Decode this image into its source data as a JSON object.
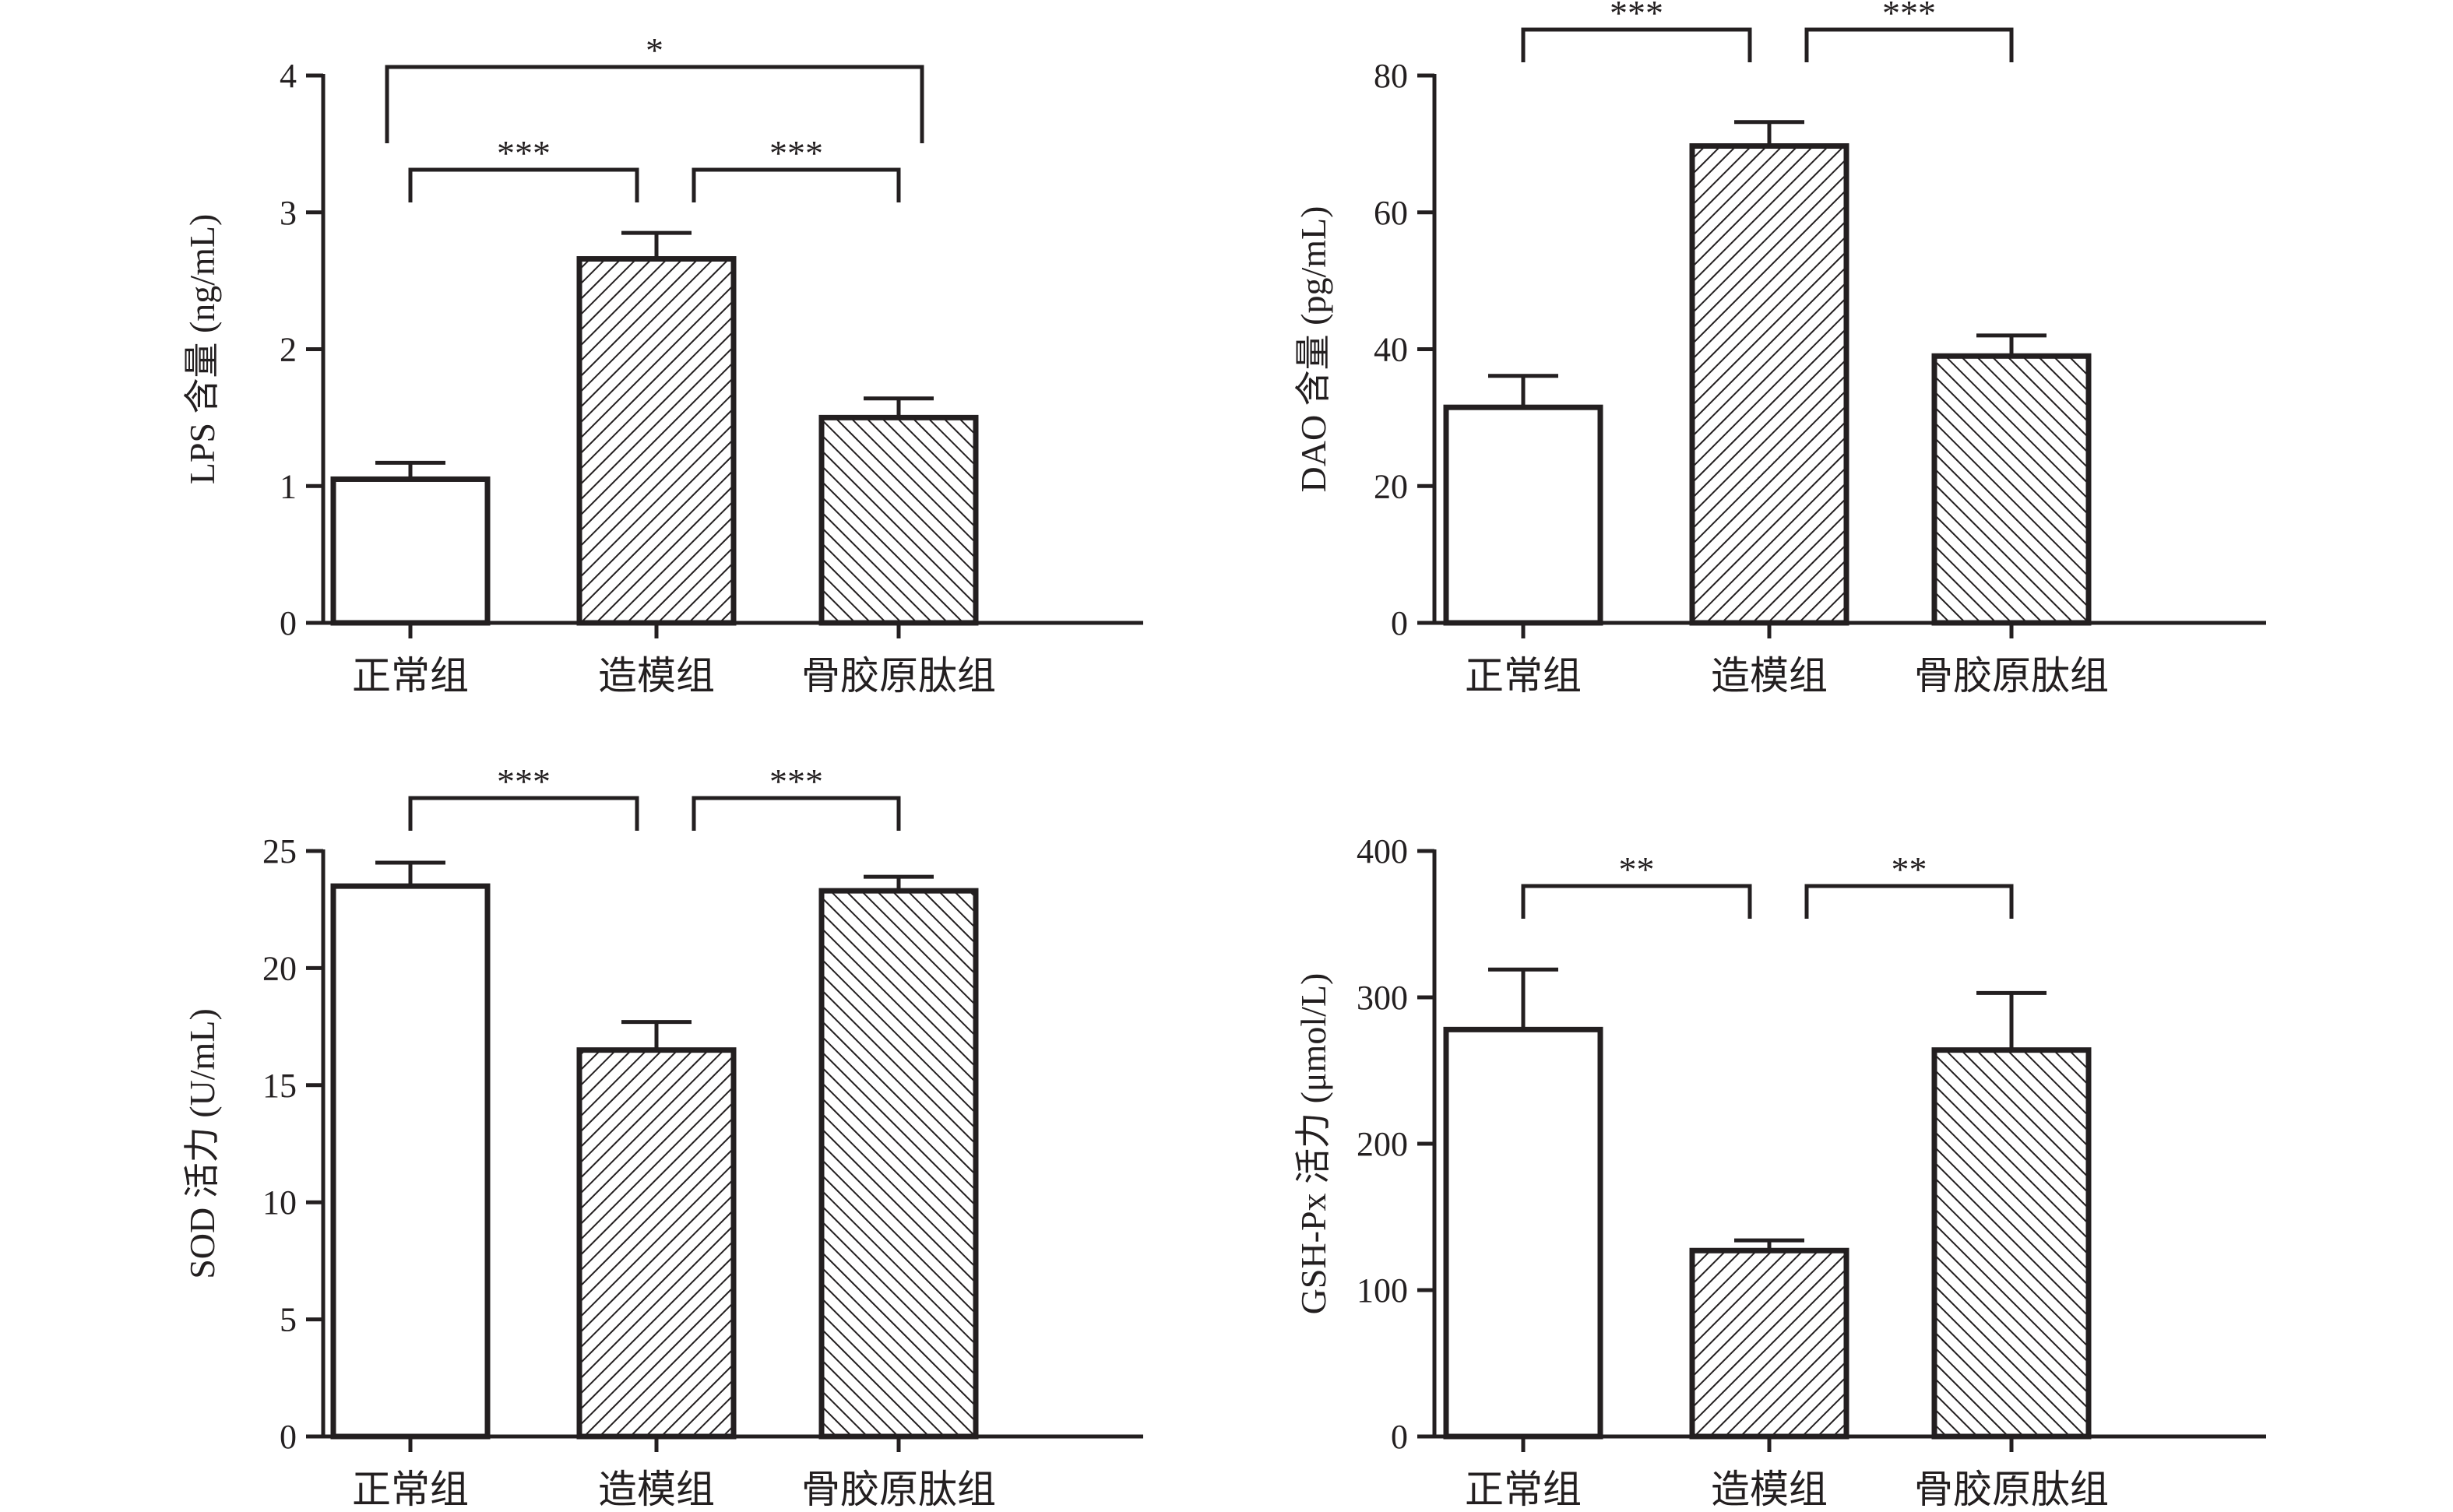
{
  "chart_data": [
    {
      "type": "bar",
      "categories": [
        "正常组",
        "造模组",
        "骨胶原肽组"
      ],
      "values": [
        1.05,
        2.66,
        1.5
      ],
      "errors": [
        0.12,
        0.19,
        0.14
      ],
      "ylabel": "LPS 含量 (ng/mL)",
      "ylim": [
        0,
        4
      ],
      "yticks": [
        "0",
        "1",
        "2",
        "3",
        "4"
      ],
      "bar_fills": [
        "open",
        "diagonal-hatch",
        "diagonal-hatch-reverse"
      ],
      "significance": [
        {
          "from": 0,
          "to": 1,
          "label": "***"
        },
        {
          "from": 1,
          "to": 2,
          "label": "***"
        },
        {
          "from": 0,
          "to": 2,
          "label": "*"
        }
      ]
    },
    {
      "type": "bar",
      "categories": [
        "正常组",
        "造模组",
        "骨胶原肽组"
      ],
      "values": [
        31.5,
        69.7,
        39.0
      ],
      "errors": [
        4.6,
        3.5,
        3.0
      ],
      "ylabel": "DAO 含量 (pg/mL)",
      "ylim": [
        0,
        80
      ],
      "yticks": [
        "0",
        "20",
        "40",
        "60",
        "80"
      ],
      "bar_fills": [
        "open",
        "diagonal-hatch",
        "diagonal-hatch-reverse"
      ],
      "significance": [
        {
          "from": 0,
          "to": 1,
          "label": "***"
        },
        {
          "from": 1,
          "to": 2,
          "label": "***"
        }
      ]
    },
    {
      "type": "bar",
      "categories": [
        "正常组",
        "造模组",
        "骨胶原肽组"
      ],
      "values": [
        23.5,
        16.5,
        23.3
      ],
      "errors": [
        1.0,
        1.2,
        0.6
      ],
      "ylabel": "SOD 活力 (U/mL)",
      "ylim": [
        0,
        25
      ],
      "yticks": [
        "0",
        "5",
        "10",
        "15",
        "20",
        "25"
      ],
      "bar_fills": [
        "open",
        "diagonal-hatch",
        "diagonal-hatch-reverse"
      ],
      "significance": [
        {
          "from": 0,
          "to": 1,
          "label": "***"
        },
        {
          "from": 1,
          "to": 2,
          "label": "***"
        }
      ]
    },
    {
      "type": "bar",
      "categories": [
        "正常组",
        "造模组",
        "骨胶原肽组"
      ],
      "values": [
        278,
        127,
        264
      ],
      "errors": [
        41,
        7,
        39
      ],
      "ylabel": "GSH-Px 活力 (μmol/L)",
      "ylim": [
        0,
        400
      ],
      "yticks": [
        "0",
        "100",
        "200",
        "300",
        "400"
      ],
      "bar_fills": [
        "open",
        "diagonal-hatch",
        "diagonal-hatch-reverse"
      ],
      "significance": [
        {
          "from": 0,
          "to": 1,
          "label": "**"
        },
        {
          "from": 1,
          "to": 2,
          "label": "**"
        }
      ]
    }
  ],
  "colors": {
    "ink": "#231f20",
    "background": "#ffffff"
  }
}
